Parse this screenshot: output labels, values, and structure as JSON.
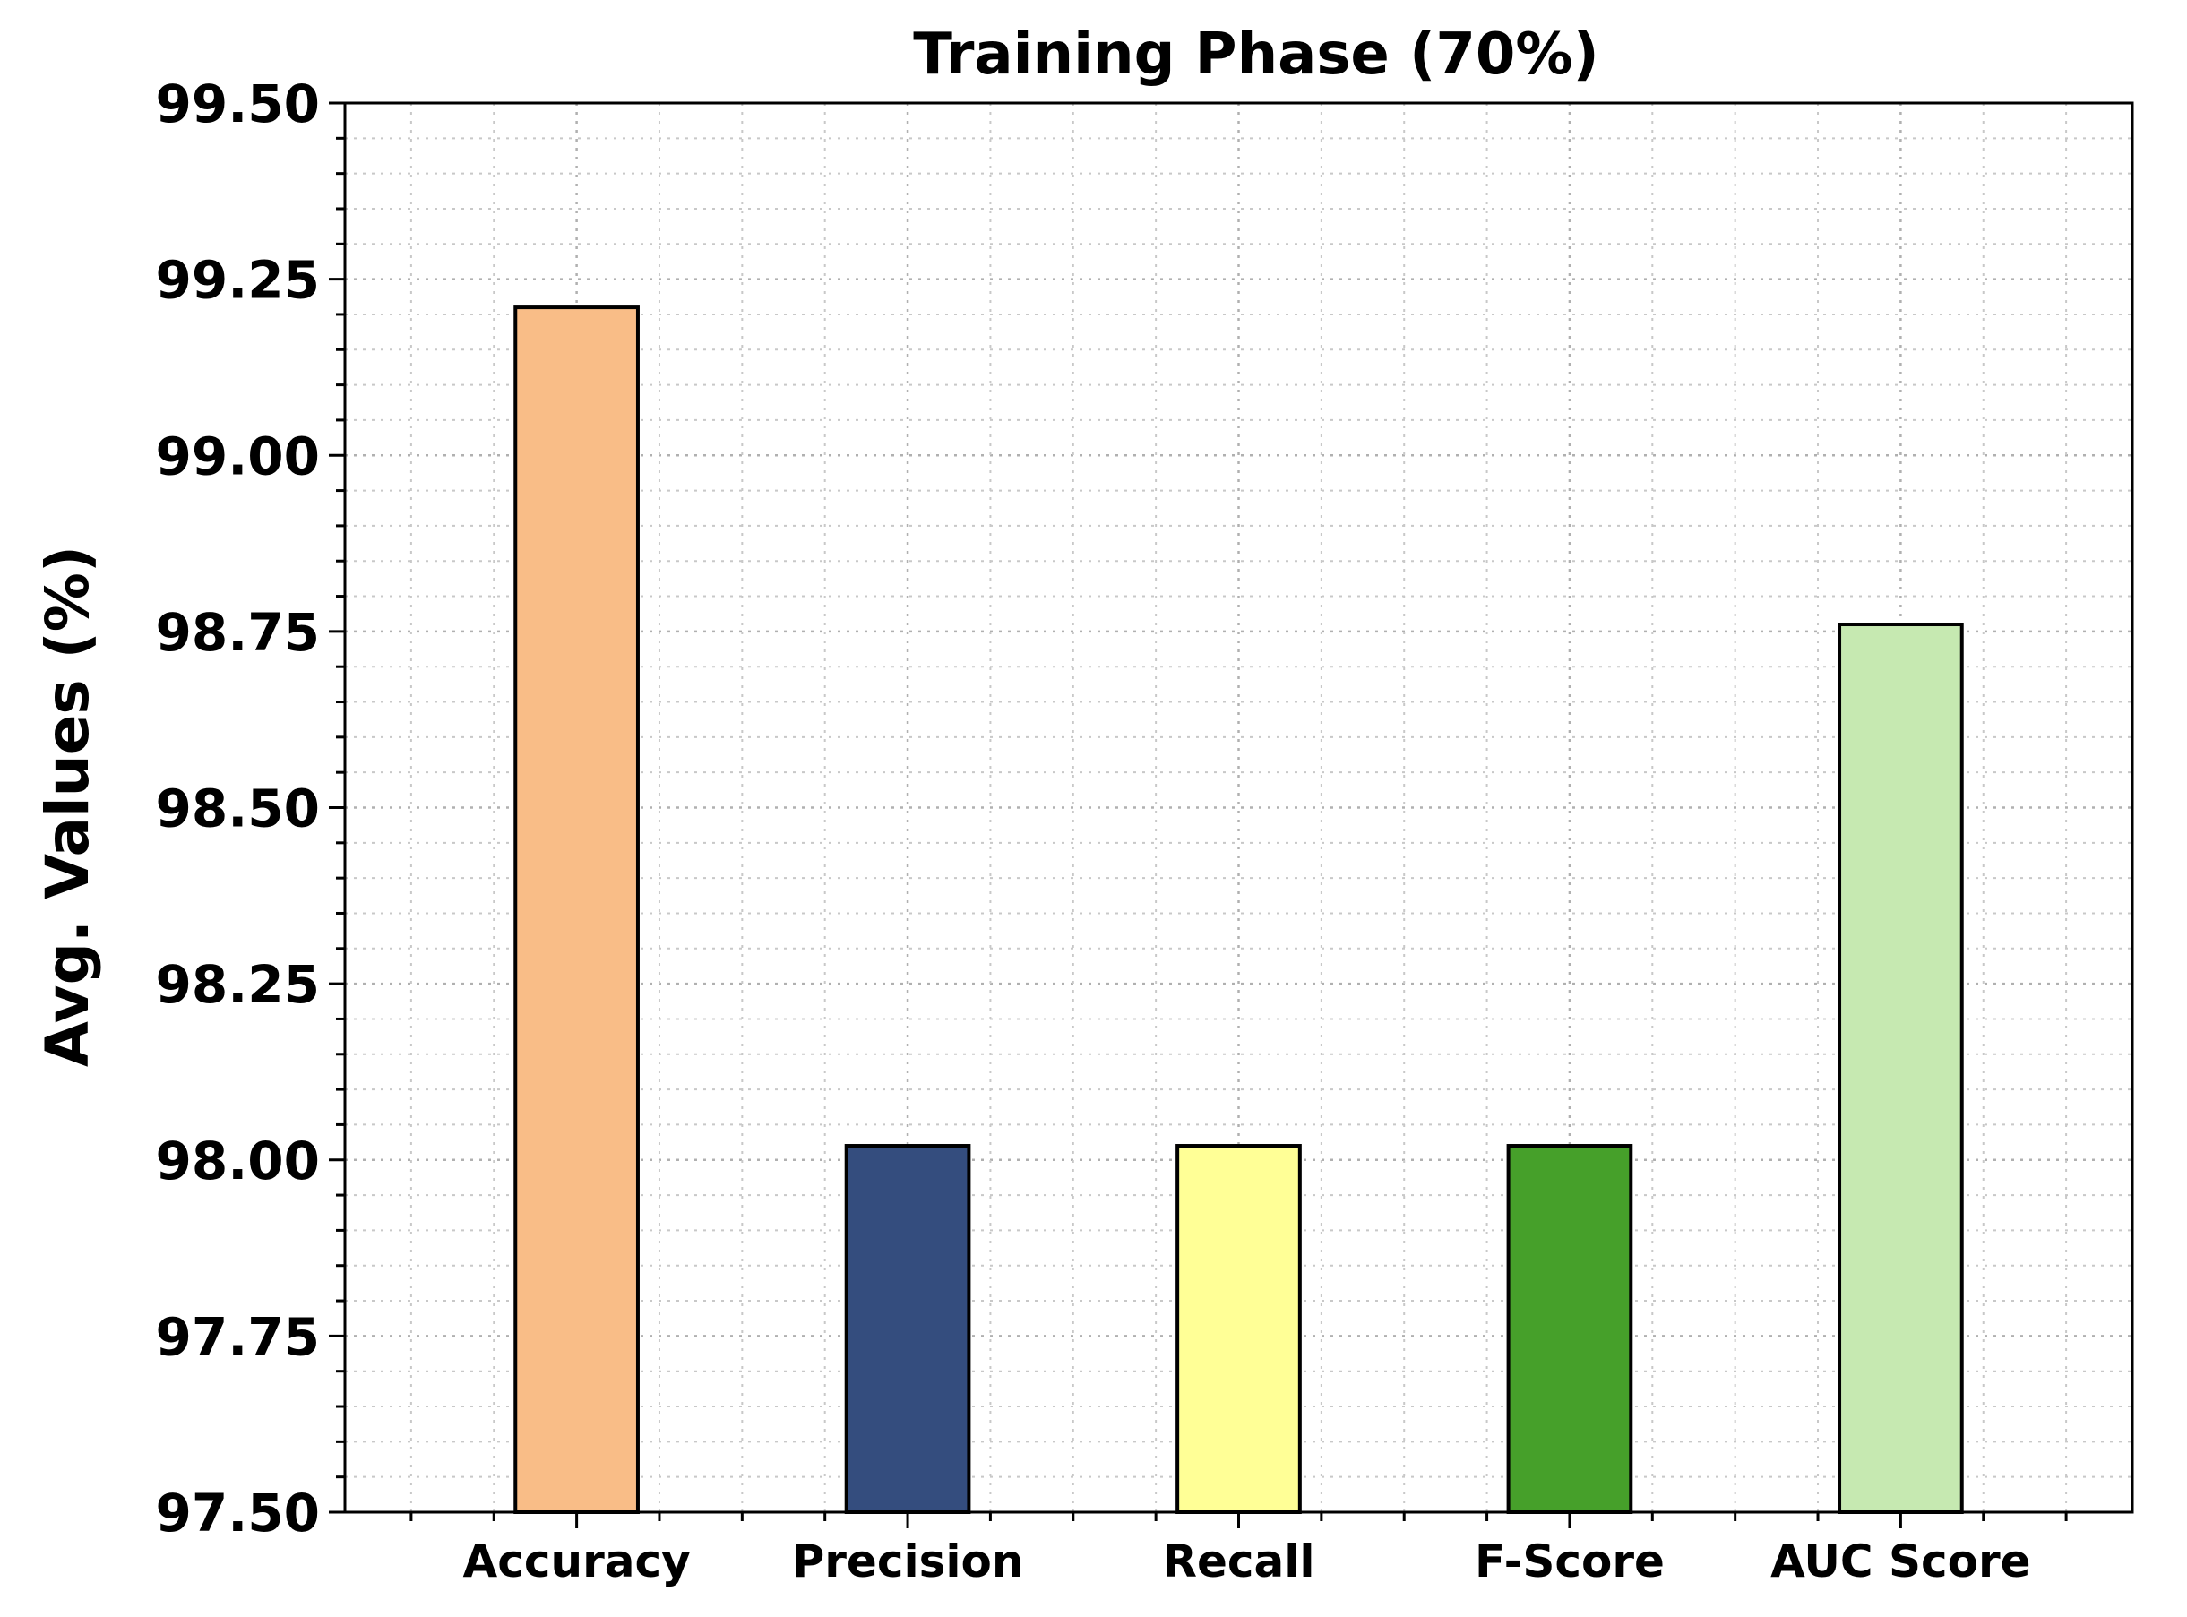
{
  "chart_data": {
    "type": "bar",
    "title": "Training Phase (70%)",
    "xlabel": "",
    "ylabel": "Avg. Values (%)",
    "categories": [
      "Accuracy",
      "Precision",
      "Recall",
      "F-Score",
      "AUC Score"
    ],
    "values": [
      99.21,
      98.02,
      98.02,
      98.02,
      98.76
    ],
    "colors": [
      "#f9bd87",
      "#344d7e",
      "#ffff96",
      "#46a02a",
      "#c6e9b1"
    ],
    "ylim": [
      97.5,
      99.5
    ],
    "yticks": [
      "97.50",
      "97.75",
      "98.00",
      "98.25",
      "98.50",
      "98.75",
      "99.00",
      "99.25",
      "99.50"
    ],
    "grid": true,
    "minor_grid": true,
    "legend": "none"
  }
}
